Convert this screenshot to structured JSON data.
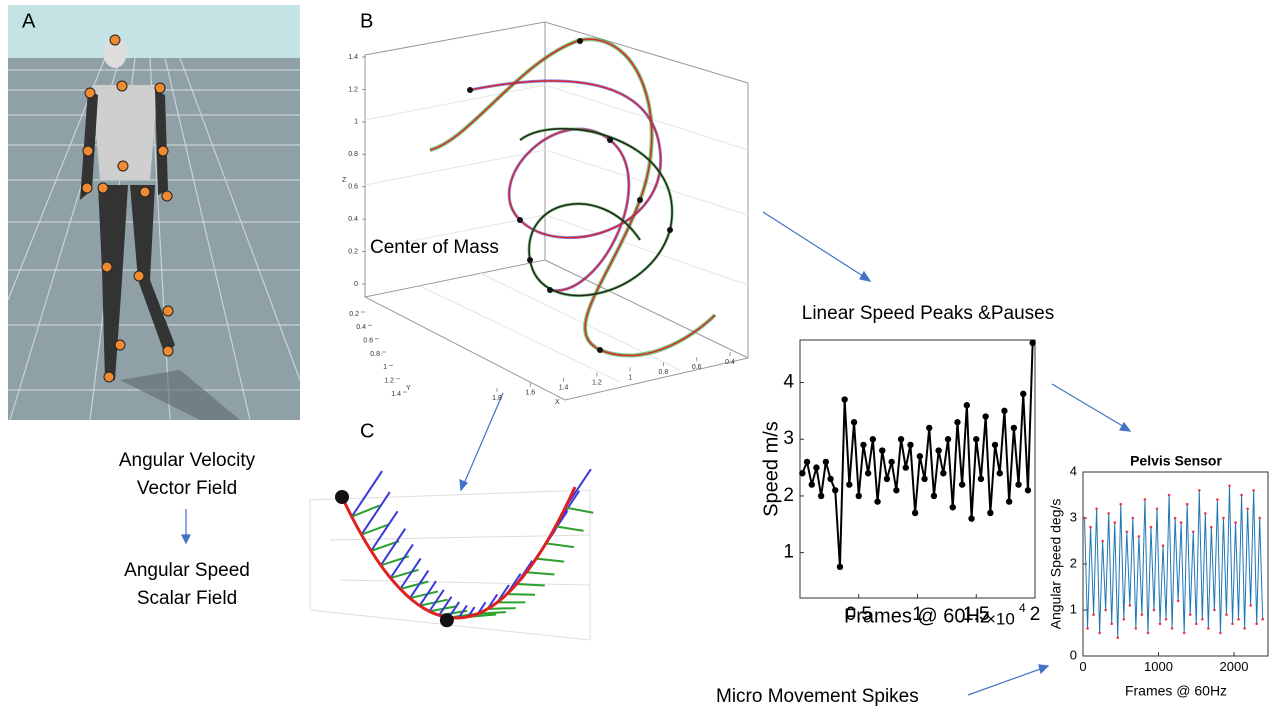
{
  "panel_labels": [
    "A",
    "B",
    "C"
  ],
  "panel_b": {
    "annotation": "Center of Mass",
    "z_label": "Z",
    "y_label": "Y",
    "x_label": "X",
    "zticks": [
      0,
      0.2,
      0.4,
      0.6,
      0.8,
      1,
      1.2,
      1.4
    ],
    "yticks": [
      0.2,
      0.4,
      0.6,
      0.8,
      1,
      1.2,
      1.4
    ],
    "xticks": [
      1.8,
      1.6,
      1.4,
      1.2,
      1,
      0.8,
      0.6,
      0.4
    ]
  },
  "flow_text": {
    "vector_field": [
      "Angular Velocity",
      "Vector Field"
    ],
    "scalar_field": [
      "Angular Speed",
      "Scalar Field"
    ],
    "spikes": "Micro Movement Spikes"
  },
  "chart_data": [
    {
      "type": "line",
      "title": "Linear Speed Peaks &Pauses",
      "y_label": "Speed m/s",
      "x_label": "Frames @ 60Hz",
      "x_offset_label": {
        "base": "×10",
        "power": "4"
      },
      "xlim": [
        0,
        20000
      ],
      "ylim": [
        0.2,
        4.75
      ],
      "xticks": [
        {
          "value": 5000,
          "label": "0.5"
        },
        {
          "value": 10000,
          "label": "1"
        },
        {
          "value": 15000,
          "label": "1.5"
        },
        {
          "value": 20000,
          "label": "2"
        }
      ],
      "yticks": [
        1,
        2,
        3,
        4
      ],
      "x": [
        200,
        600,
        1000,
        1400,
        1800,
        2200,
        2600,
        3000,
        3400,
        3800,
        4200,
        4600,
        5000,
        5400,
        5800,
        6200,
        6600,
        7000,
        7400,
        7800,
        8200,
        8600,
        9000,
        9400,
        9800,
        10200,
        10600,
        11000,
        11400,
        11800,
        12200,
        12600,
        13000,
        13400,
        13800,
        14200,
        14600,
        15000,
        15400,
        15800,
        16200,
        16600,
        17000,
        17400,
        17800,
        18200,
        18600,
        19000,
        19400,
        19800
      ],
      "series": [
        {
          "name": "Speed",
          "color": "#000000",
          "marker_color": "#000000",
          "values": [
            2.4,
            2.6,
            2.2,
            2.5,
            2.0,
            2.6,
            2.3,
            2.1,
            0.75,
            3.7,
            2.2,
            3.3,
            2.0,
            2.9,
            2.4,
            3.0,
            1.9,
            2.8,
            2.3,
            2.6,
            2.1,
            3.0,
            2.5,
            2.9,
            1.7,
            2.7,
            2.3,
            3.2,
            2.0,
            2.8,
            2.4,
            3.0,
            1.8,
            3.3,
            2.2,
            3.6,
            1.6,
            3.0,
            2.3,
            3.4,
            1.7,
            2.9,
            2.4,
            3.5,
            1.9,
            3.2,
            2.2,
            3.8,
            2.1,
            4.7
          ]
        }
      ]
    },
    {
      "type": "line",
      "title": "Pelvis Sensor",
      "y_label": "Angular Speed deg/s",
      "x_label": "Frames @ 60Hz",
      "xlim": [
        0,
        2450
      ],
      "ylim": [
        0,
        4
      ],
      "xticks": [
        0,
        1000,
        2000
      ],
      "yticks": [
        0,
        1,
        2,
        3,
        4
      ],
      "x": [
        20,
        60,
        100,
        140,
        180,
        220,
        260,
        300,
        340,
        380,
        420,
        460,
        500,
        540,
        580,
        620,
        660,
        700,
        740,
        780,
        820,
        860,
        900,
        940,
        980,
        1020,
        1060,
        1100,
        1140,
        1180,
        1220,
        1260,
        1300,
        1340,
        1380,
        1420,
        1460,
        1500,
        1540,
        1580,
        1620,
        1660,
        1700,
        1740,
        1780,
        1820,
        1860,
        1900,
        1940,
        1980,
        2020,
        2060,
        2100,
        2140,
        2180,
        2220,
        2260,
        2300,
        2340,
        2380
      ],
      "series": [
        {
          "name": "Angular Speed",
          "color": "#1f77b4",
          "marker_color": "#e8384f",
          "values": [
            3.0,
            0.6,
            2.8,
            0.9,
            3.2,
            0.5,
            2.5,
            1.0,
            3.1,
            0.7,
            2.9,
            0.4,
            3.3,
            0.8,
            2.7,
            1.1,
            3.0,
            0.6,
            2.6,
            0.9,
            3.4,
            0.5,
            2.8,
            1.0,
            3.2,
            0.7,
            2.4,
            0.8,
            3.5,
            0.6,
            3.0,
            1.2,
            2.9,
            0.5,
            3.3,
            0.9,
            2.7,
            0.7,
            3.6,
            0.8,
            3.1,
            0.6,
            2.8,
            1.0,
            3.4,
            0.5,
            3.0,
            0.9,
            3.7,
            0.7,
            2.9,
            0.8,
            3.5,
            0.6,
            3.2,
            1.1,
            3.6,
            0.7,
            3.0,
            0.8
          ]
        }
      ]
    }
  ]
}
